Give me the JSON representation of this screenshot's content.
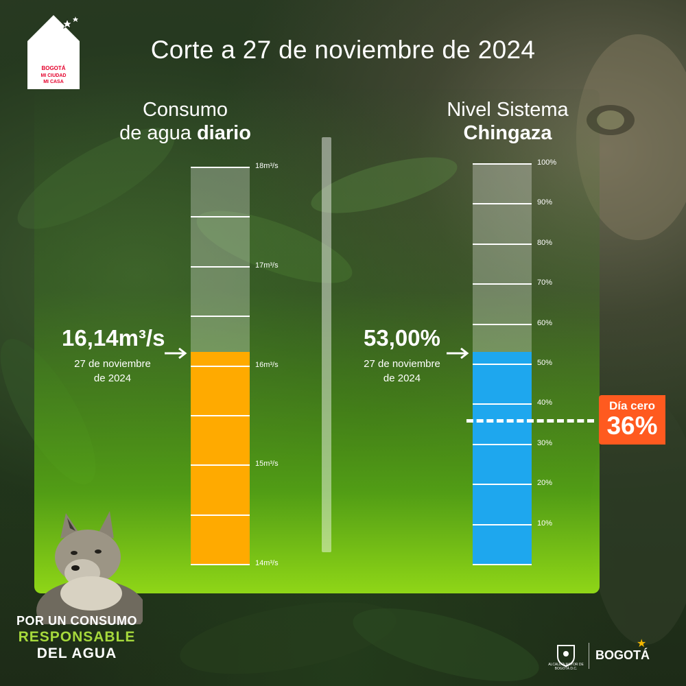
{
  "header": {
    "title": "Corte a 27 de noviembre de 2024",
    "logo_lines": [
      "BOGOTÁ",
      "MI CIUDAD",
      "MI CASA"
    ]
  },
  "left": {
    "title_line1": "Consumo",
    "title_line2_normal": "de agua ",
    "title_line2_bold": "diario",
    "value": "16,14m³/s",
    "date_line1": "27 de noviembre",
    "date_line2": "de 2024"
  },
  "right": {
    "title_line1": "Nivel Sistema",
    "title_line2_bold": "Chingaza",
    "value": "53,00%",
    "date_line1": "27 de noviembre",
    "date_line2": "de 2024"
  },
  "dia_cero": {
    "label": "Día cero",
    "value": "36%"
  },
  "slogan": {
    "line1": "POR UN CONSUMO",
    "line2": "RESPONSABLE",
    "line3": "DEL AGUA"
  },
  "footer": {
    "crest_text": "ALCALDÍA MAYOR DE BOGOTÁ D.C.",
    "brand": "BOGOTÁ"
  },
  "colors": {
    "consumo_fill": "#ffaa00",
    "chingaza_fill": "#1ea7ee",
    "dia_cero_bg": "#ff5a1f",
    "panel_bottom": "#8fd617",
    "slogan_accent": "#a6d93c"
  },
  "chart_data": [
    {
      "type": "bar",
      "title": "Consumo de agua diario",
      "unit": "m³/s",
      "value": 16.14,
      "ylim": [
        14,
        18
      ],
      "tick_labels": [
        "18m³/s",
        "17m³/s",
        "16m³/s",
        "15m³/s",
        "14m³/s"
      ],
      "labeled_ticks": [
        18,
        17,
        16,
        15,
        14
      ]
    },
    {
      "type": "bar",
      "title": "Nivel Sistema Chingaza",
      "unit": "%",
      "value": 53.0,
      "ylim": [
        0,
        100
      ],
      "tick_labels": [
        "100%",
        "90%",
        "80%",
        "70%",
        "60%",
        "50%",
        "40%",
        "30%",
        "20%",
        "10%"
      ],
      "labeled_ticks": [
        100,
        90,
        80,
        70,
        60,
        50,
        40,
        30,
        20,
        10
      ],
      "threshold": {
        "value": 36,
        "label": "Día cero"
      }
    }
  ]
}
